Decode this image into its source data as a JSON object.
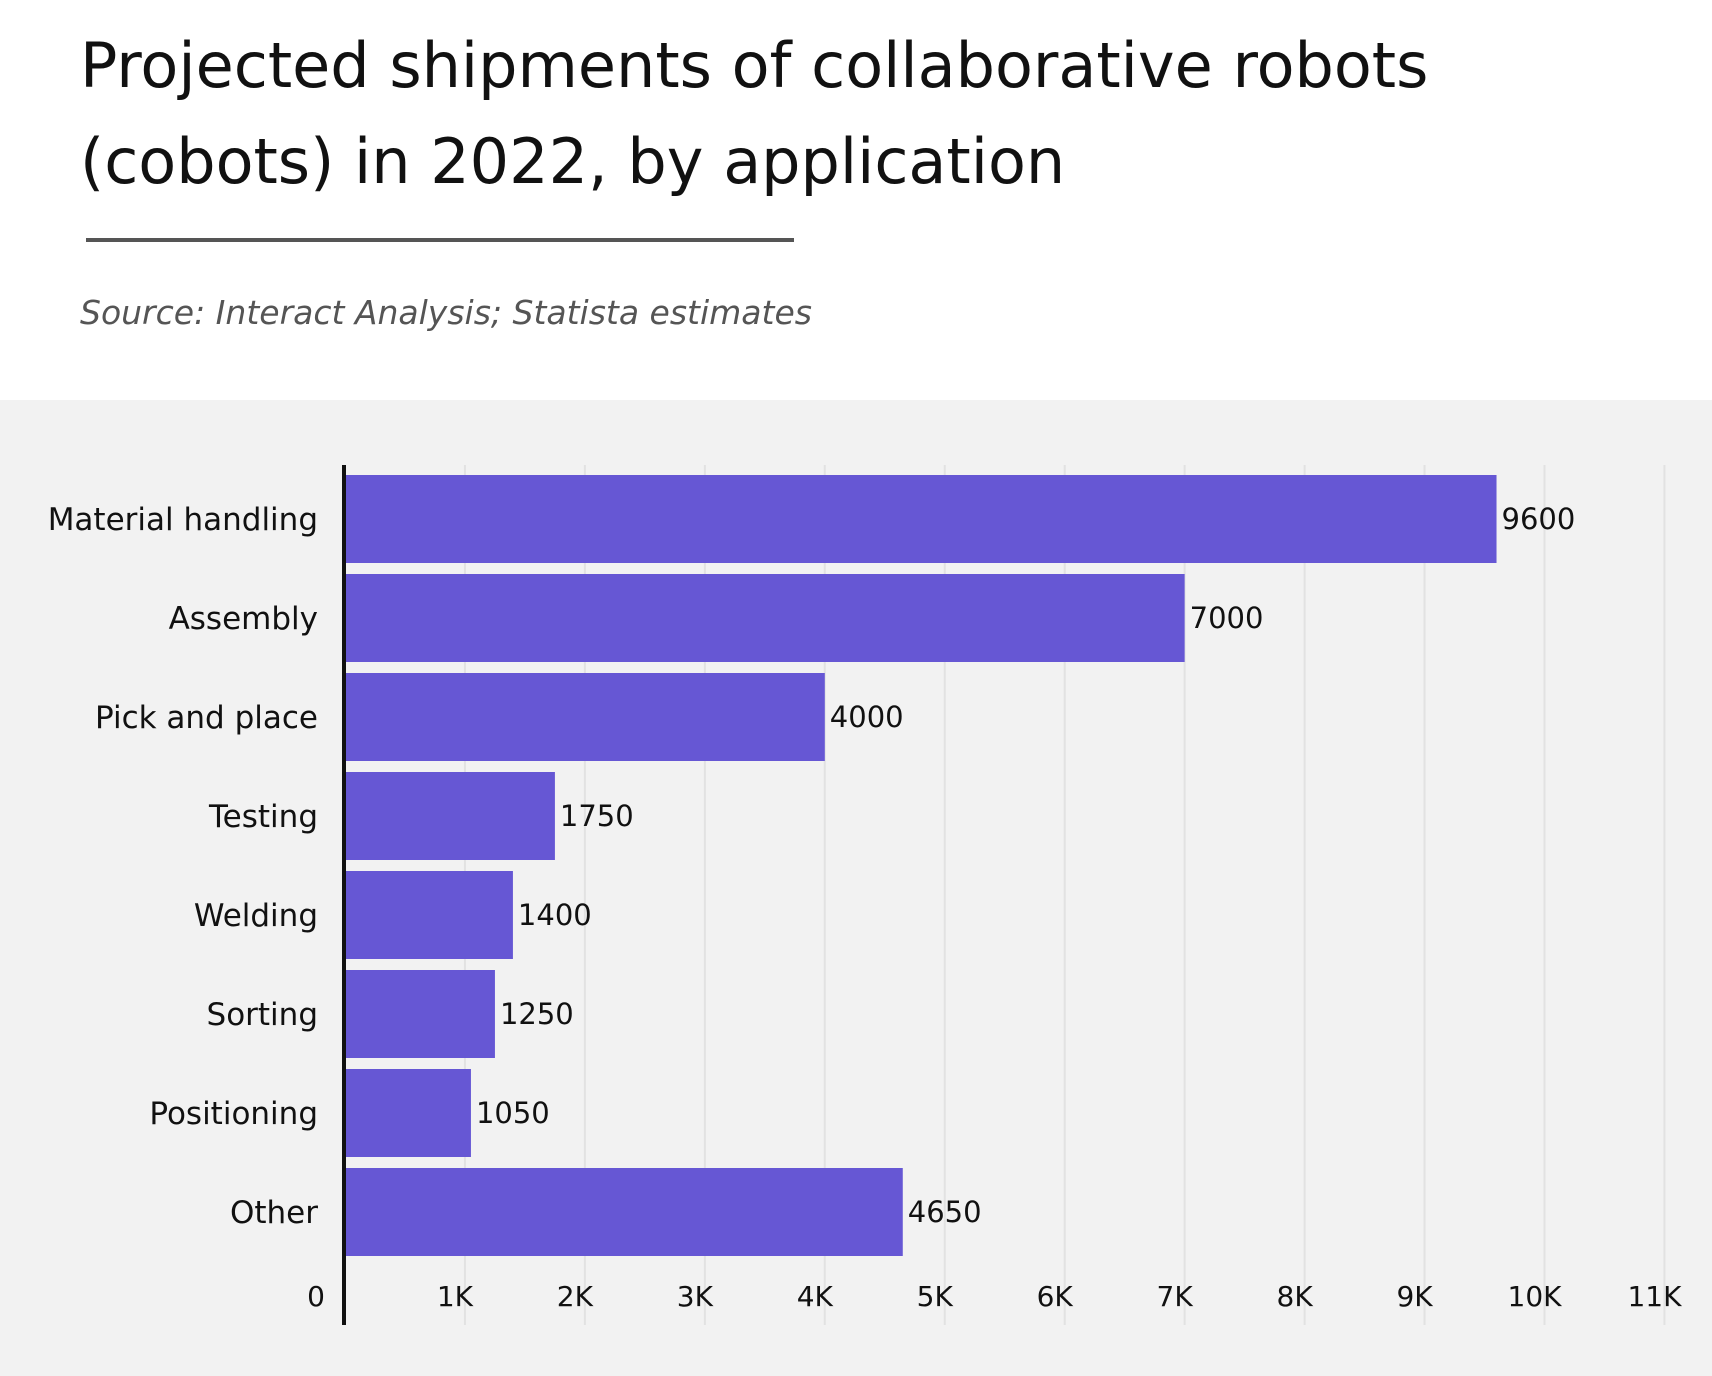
{
  "header": {
    "title": "Projected shipments of collaborative robots (cobots) in 2022, by application",
    "source": "Source: Interact Analysis; Statista estimates"
  },
  "colors": {
    "bar": "#6657d4",
    "plot_background": "#f2f2f2",
    "gridline": "#e2e2e2",
    "axis": "#111111"
  },
  "chart_data": {
    "type": "bar",
    "orientation": "horizontal",
    "title": "Projected shipments of collaborative robots (cobots) in 2022, by application",
    "source": "Source: Interact Analysis; Statista estimates",
    "categories": [
      "Material handling",
      "Assembly",
      "Pick and place",
      "Testing",
      "Welding",
      "Sorting",
      "Positioning",
      "Other"
    ],
    "values": [
      9600,
      7000,
      4000,
      1750,
      1400,
      1250,
      1050,
      4650
    ],
    "data_labels": [
      "9600",
      "7000",
      "4000",
      "1750",
      "1400",
      "1250",
      "1050",
      "4650"
    ],
    "xlabel": "",
    "ylabel": "",
    "xlim": [
      0,
      11000
    ],
    "x_ticks": [
      0,
      1000,
      2000,
      3000,
      4000,
      5000,
      6000,
      7000,
      8000,
      9000,
      10000,
      11000
    ],
    "x_tick_labels": [
      "0",
      "1K",
      "2K",
      "3K",
      "4K",
      "5K",
      "6K",
      "7K",
      "8K",
      "9K",
      "10K",
      "11K"
    ],
    "grid": true,
    "legend": "none"
  }
}
